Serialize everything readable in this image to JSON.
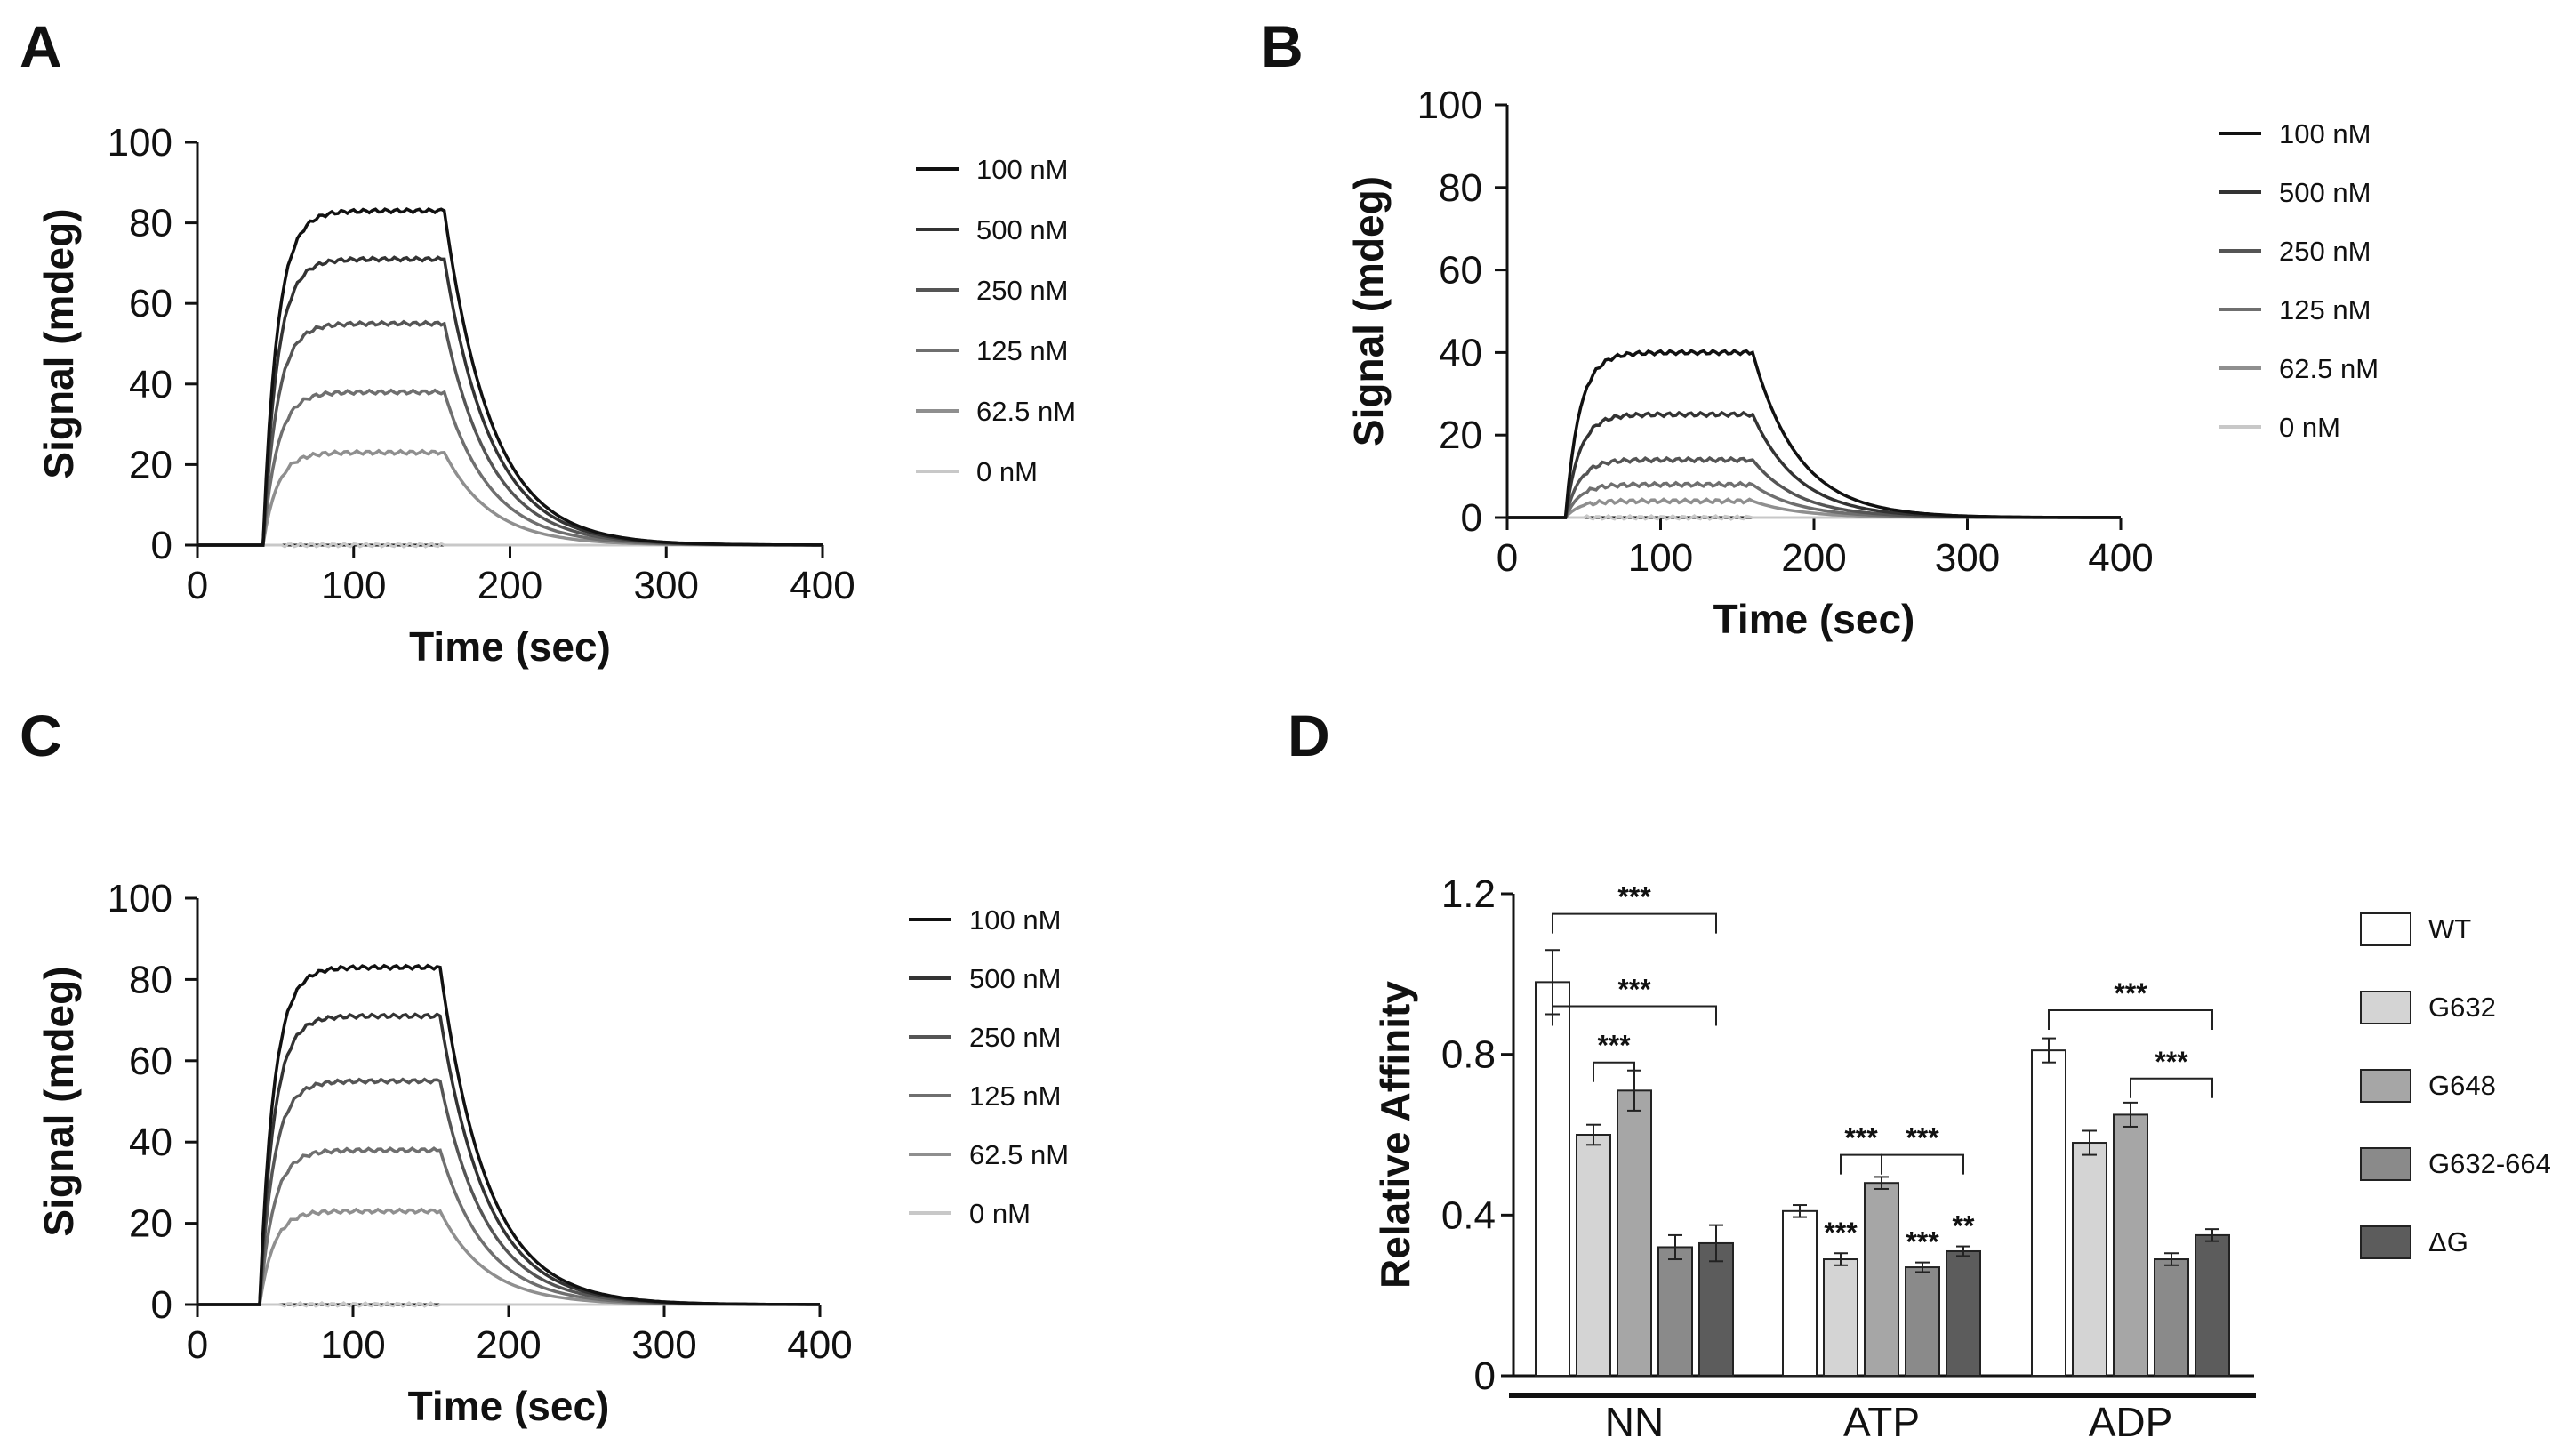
{
  "panels": [
    {
      "label": "A",
      "chart_data": {
        "type": "line",
        "xlabel": "Time (sec)",
        "ylabel": "Signal  (mdeg)",
        "xlim": [
          0,
          400
        ],
        "ylim": [
          0,
          100
        ],
        "xticks": [
          0,
          100,
          200,
          300,
          400
        ],
        "yticks": [
          0,
          20,
          40,
          60,
          80,
          100
        ],
        "association_start": 42,
        "dissociation_start": 158,
        "legend_position": "right",
        "series": [
          {
            "name": "100 nM",
            "plateau": 83,
            "color": "#111111"
          },
          {
            "name": "500 nM",
            "plateau": 71,
            "color": "#333333"
          },
          {
            "name": "250 nM",
            "plateau": 55,
            "color": "#555555"
          },
          {
            "name": "125 nM",
            "plateau": 38,
            "color": "#6f6f6f"
          },
          {
            "name": "62.5 nM",
            "plateau": 23,
            "color": "#8f8f8f"
          },
          {
            "name": "0 nM",
            "plateau": 0,
            "color": "#c8c8c8"
          }
        ]
      }
    },
    {
      "label": "B",
      "chart_data": {
        "type": "line",
        "xlabel": "Time (sec)",
        "ylabel": "Signal  (mdeg)",
        "xlim": [
          0,
          400
        ],
        "ylim": [
          0,
          100
        ],
        "xticks": [
          0,
          100,
          200,
          300,
          400
        ],
        "yticks": [
          0,
          20,
          40,
          60,
          80,
          100
        ],
        "association_start": 38,
        "dissociation_start": 160,
        "legend_position": "right",
        "series": [
          {
            "name": "100 nM",
            "plateau": 40,
            "color": "#111111"
          },
          {
            "name": "500 nM",
            "plateau": 25,
            "color": "#333333"
          },
          {
            "name": "250 nM",
            "plateau": 14,
            "color": "#555555"
          },
          {
            "name": "125 nM",
            "plateau": 8,
            "color": "#6f6f6f"
          },
          {
            "name": "62.5 nM",
            "plateau": 4,
            "color": "#8f8f8f"
          },
          {
            "name": "0 nM",
            "plateau": 0,
            "color": "#c8c8c8"
          }
        ]
      }
    },
    {
      "label": "C",
      "chart_data": {
        "type": "line",
        "xlabel": "Time (sec)",
        "ylabel": "Signal  (mdeg)",
        "xlim": [
          0,
          400
        ],
        "ylim": [
          0,
          100
        ],
        "xticks": [
          0,
          100,
          200,
          300,
          400
        ],
        "yticks": [
          0,
          20,
          40,
          60,
          80,
          100
        ],
        "association_start": 40,
        "dissociation_start": 156,
        "legend_position": "right",
        "series": [
          {
            "name": "100 nM",
            "plateau": 83,
            "color": "#111111"
          },
          {
            "name": "500 nM",
            "plateau": 71,
            "color": "#333333"
          },
          {
            "name": "250 nM",
            "plateau": 55,
            "color": "#555555"
          },
          {
            "name": "125 nM",
            "plateau": 38,
            "color": "#6f6f6f"
          },
          {
            "name": "62.5 nM",
            "plateau": 23,
            "color": "#8f8f8f"
          },
          {
            "name": "0 nM",
            "plateau": 0,
            "color": "#c8c8c8"
          }
        ]
      }
    },
    {
      "label": "D",
      "chart_data": {
        "type": "bar",
        "xlabel": "",
        "ylabel": "Relative Affinity",
        "ylim": [
          0,
          1.2
        ],
        "yticks": [
          "0",
          "0.4",
          "0.8",
          "1.2"
        ],
        "categories": [
          "NN",
          "ATP",
          "ADP"
        ],
        "legend_position": "right",
        "series": [
          {
            "name": "WT",
            "color": "#ffffff",
            "values": [
              0.98,
              0.41,
              0.81
            ],
            "errors": [
              0.08,
              0.015,
              0.03
            ]
          },
          {
            "name": "G632",
            "color": "#d4d4d4",
            "values": [
              0.6,
              0.29,
              0.58
            ],
            "errors": [
              0.025,
              0.015,
              0.03
            ]
          },
          {
            "name": "G648",
            "color": "#a6a6a6",
            "values": [
              0.71,
              0.48,
              0.65
            ],
            "errors": [
              0.05,
              0.015,
              0.03
            ]
          },
          {
            "name": "G632-664",
            "color": "#8a8a8a",
            "values": [
              0.32,
              0.27,
              0.29
            ],
            "errors": [
              0.03,
              0.012,
              0.015
            ]
          },
          {
            "name": "ΔG",
            "color": "#5c5c5c",
            "values": [
              0.33,
              0.31,
              0.35
            ],
            "errors": [
              0.045,
              0.012,
              0.015
            ]
          }
        ],
        "significance": [
          {
            "group": 0,
            "from": 0,
            "to": 4,
            "level": 1.15,
            "label": "***"
          },
          {
            "group": 0,
            "from": 0,
            "to": 4,
            "level": 0.92,
            "label": "***"
          },
          {
            "group": 0,
            "from": 1,
            "to": 2,
            "level": 0.78,
            "label": "***"
          },
          {
            "group": 1,
            "from": 1,
            "to": 2,
            "level": 0.55,
            "label": "***"
          },
          {
            "group": 1,
            "from": 2,
            "to": 4,
            "level": 0.55,
            "label": "***"
          },
          {
            "group": 2,
            "from": 0,
            "to": 4,
            "level": 0.91,
            "label": "***"
          },
          {
            "group": 2,
            "from": 2,
            "to": 4,
            "level": 0.74,
            "label": "***"
          }
        ],
        "bar_stars": [
          {
            "group": 1,
            "series": 1,
            "label": "***"
          },
          {
            "group": 1,
            "series": 3,
            "label": "***"
          },
          {
            "group": 1,
            "series": 4,
            "label": "**"
          }
        ]
      }
    }
  ]
}
